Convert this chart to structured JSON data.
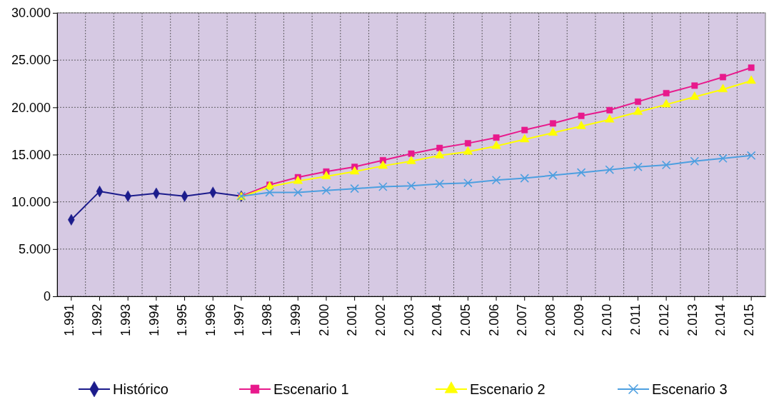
{
  "chart_data": {
    "type": "line",
    "categories": [
      "1.991",
      "1.992",
      "1.993",
      "1.994",
      "1.995",
      "1.996",
      "1.997",
      "1.998",
      "1.999",
      "2.000",
      "2.001",
      "2.002",
      "2.003",
      "2.004",
      "2.005",
      "2.006",
      "2.007",
      "2.008",
      "2.009",
      "2.010",
      "2.011",
      "2.012",
      "2.013",
      "2.014",
      "2.015"
    ],
    "series": [
      {
        "name": "Histórico",
        "color": "#1c1c8c",
        "marker": "diamond",
        "values": [
          8100,
          11100,
          10600,
          10900,
          10600,
          11000,
          10600,
          null,
          null,
          null,
          null,
          null,
          null,
          null,
          null,
          null,
          null,
          null,
          null,
          null,
          null,
          null,
          null,
          null,
          null
        ]
      },
      {
        "name": "Escenario 1",
        "color": "#e8198c",
        "marker": "square",
        "values": [
          null,
          null,
          null,
          null,
          null,
          null,
          10600,
          11800,
          12600,
          13200,
          13700,
          14400,
          15100,
          15700,
          16200,
          16800,
          17600,
          18300,
          19100,
          19700,
          20600,
          21500,
          22300,
          23200,
          24200
        ]
      },
      {
        "name": "Escenario 2",
        "color": "#ffff00",
        "marker": "triangle",
        "values": [
          null,
          null,
          null,
          null,
          null,
          null,
          10500,
          11600,
          12200,
          12700,
          13200,
          13800,
          14300,
          14900,
          15300,
          15900,
          16600,
          17300,
          18000,
          18700,
          19500,
          20300,
          21100,
          21900,
          22800
        ]
      },
      {
        "name": "Escenario 3",
        "color": "#4d9fe0",
        "marker": "cross",
        "values": [
          null,
          null,
          null,
          null,
          null,
          null,
          10600,
          11000,
          11000,
          11200,
          11400,
          11600,
          11700,
          11900,
          12000,
          12300,
          12500,
          12800,
          13100,
          13400,
          13700,
          13900,
          14300,
          14600,
          14900
        ]
      }
    ],
    "ylim": [
      0,
      30000
    ],
    "yticks": [
      {
        "value": 0,
        "label": "0"
      },
      {
        "value": 5000,
        "label": "5.000"
      },
      {
        "value": 10000,
        "label": "10.000"
      },
      {
        "value": 15000,
        "label": "15.000"
      },
      {
        "value": 20000,
        "label": "20.000"
      },
      {
        "value": 25000,
        "label": "25.000"
      },
      {
        "value": 30000,
        "label": "30.000"
      }
    ],
    "grid": true,
    "legend": "bottom",
    "line_style": "solid"
  }
}
